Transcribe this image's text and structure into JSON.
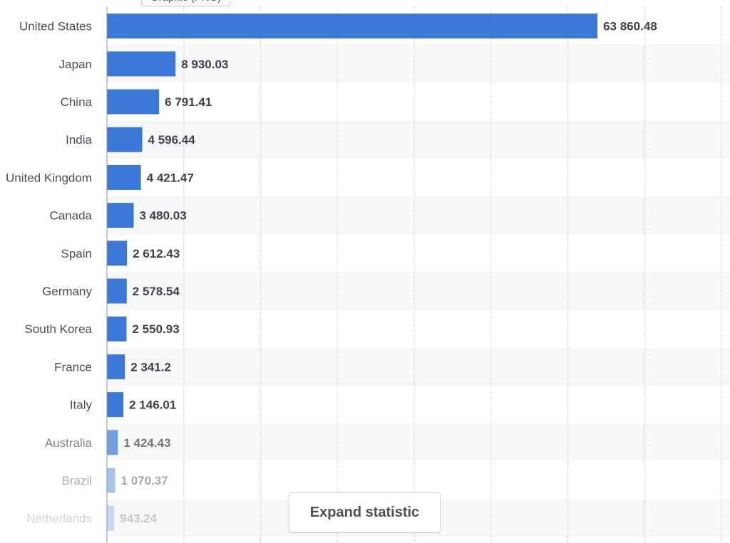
{
  "tooltip_tab": {
    "label": "Graphic (PNG)"
  },
  "expand_button": {
    "label": "Expand statistic"
  },
  "colors": {
    "bar": "#3b78d8",
    "band": "#f6f7f8",
    "label": "#4a5058",
    "value": "#3f4247",
    "grid": "#c8ccd1",
    "axis": "#8d939a"
  },
  "chart_data": {
    "type": "bar",
    "orientation": "horizontal",
    "categories": [
      "United States",
      "Japan",
      "China",
      "India",
      "United Kingdom",
      "Canada",
      "Spain",
      "Germany",
      "South Korea",
      "France",
      "Italy",
      "Australia",
      "Brazil",
      "Netherlands"
    ],
    "values": [
      63860.48,
      8930.03,
      6791.41,
      4596.44,
      4421.47,
      3480.03,
      2612.43,
      2578.54,
      2550.93,
      2341.2,
      2146.01,
      1424.43,
      1070.37,
      943.24
    ],
    "value_labels": [
      "63 860.48",
      "8 930.03",
      "6 791.41",
      "4 596.44",
      "4 421.47",
      "3 480.03",
      "2 612.43",
      "2 578.54",
      "2 550.93",
      "2 341.2",
      "2 146.01",
      "1 424.43",
      "1 070.37",
      "943.24"
    ],
    "xlim": [
      0,
      80000
    ],
    "grid": true,
    "title": "",
    "xlabel": "",
    "ylabel": ""
  }
}
